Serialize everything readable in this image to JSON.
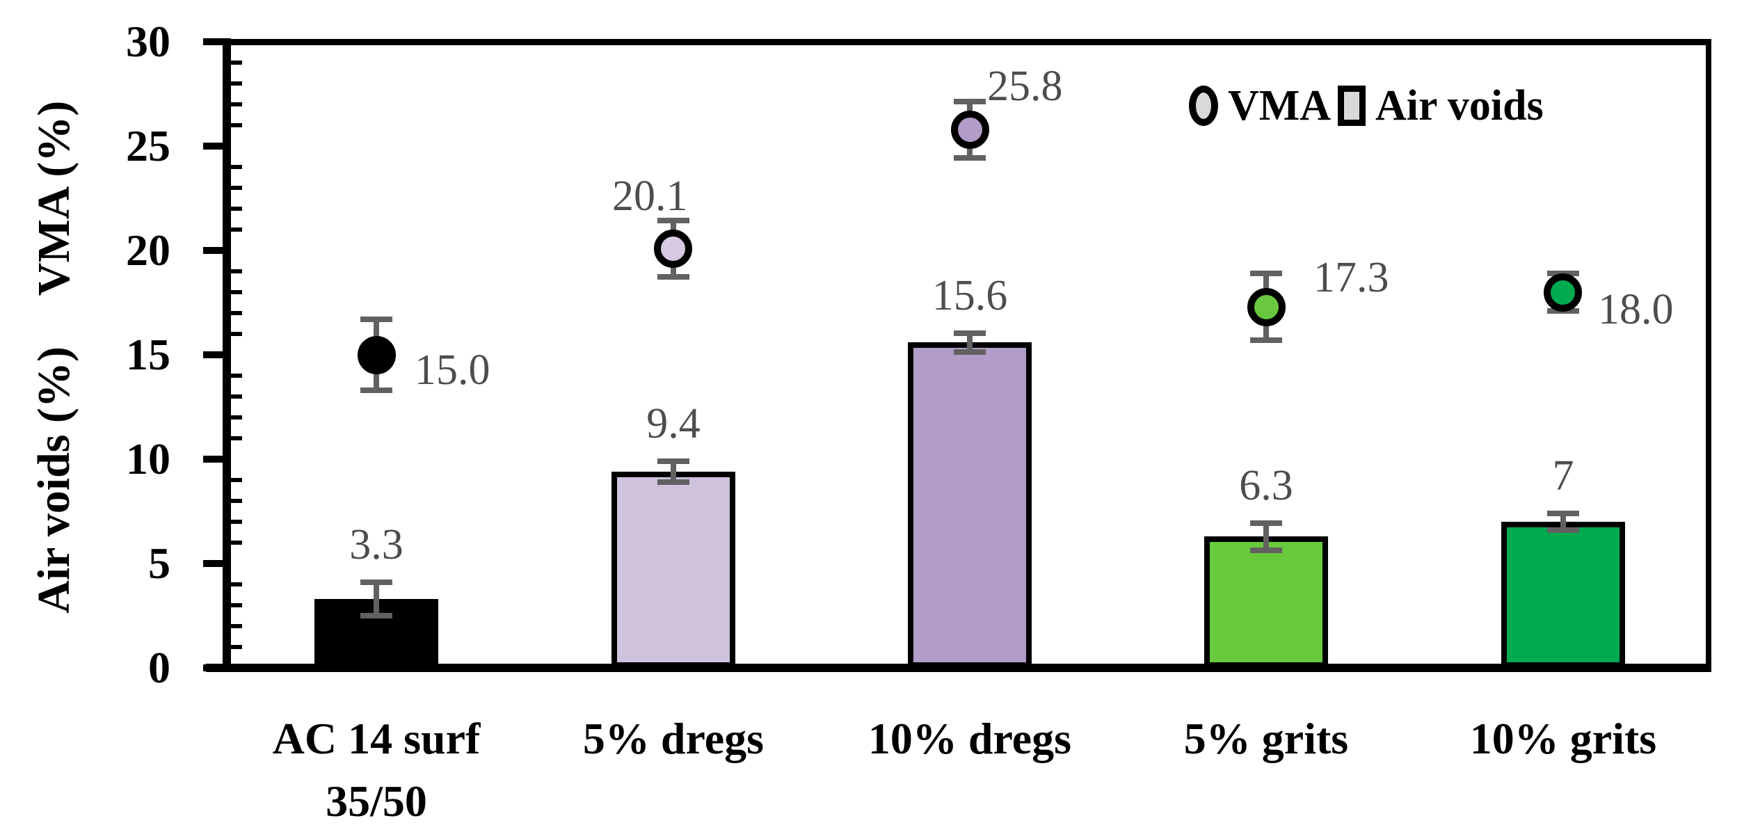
{
  "figure": {
    "y_axis_label_top": "VMA (%)",
    "y_axis_label_bottom": "Air voids (%)",
    "legend": {
      "vma": "VMA",
      "air_voids": "Air voids"
    }
  },
  "chart_data": {
    "type": "bar",
    "subtype": "bar-with-scatter-overlay",
    "title": "",
    "xlabel": "",
    "ylabel_left_top": "VMA (%)",
    "ylabel_left_bottom": "Air voids (%)",
    "ylim": [
      0,
      30
    ],
    "y_major_ticks": [
      0,
      5,
      10,
      15,
      20,
      25,
      30
    ],
    "y_tick_labels": [
      "0",
      "5",
      "10",
      "15",
      "20",
      "25",
      "30"
    ],
    "y_minor_step": 1,
    "grid": false,
    "legend_position": "top-right-inside",
    "legend_marker_fill": "#D9D9D9",
    "value_label_color": "#4D4D4D",
    "error_bar_color": "#616161",
    "categories": [
      {
        "lines": [
          "AC 14 surf",
          "35/50"
        ]
      },
      {
        "lines": [
          "5% dregs"
        ]
      },
      {
        "lines": [
          "10% dregs"
        ]
      },
      {
        "lines": [
          "5% grits"
        ]
      },
      {
        "lines": [
          "10% grits"
        ]
      }
    ],
    "series": [
      {
        "name": "Air voids",
        "type": "bar",
        "values": [
          3.3,
          9.4,
          15.6,
          6.3,
          7
        ],
        "labels": [
          "3.3",
          "9.4",
          "15.6",
          "6.3",
          "7"
        ],
        "errors": [
          0.8,
          0.5,
          0.45,
          0.65,
          0.4
        ],
        "colors": [
          "#000000",
          "#CEC2DD",
          "#B29CC8",
          "#69C93C",
          "#00AB50"
        ]
      },
      {
        "name": "VMA",
        "type": "scatter",
        "values": [
          15.0,
          20.1,
          25.8,
          17.3,
          18.0
        ],
        "labels": [
          "15.0",
          "20.1",
          "25.8",
          "17.3",
          "18.0"
        ],
        "errors": [
          1.7,
          1.35,
          1.35,
          1.6,
          0.9
        ],
        "colors": [
          "#000000",
          "#D6CAE3",
          "#B29CC8",
          "#6AC740",
          "#00AB50"
        ],
        "label_offsets": [
          {
            "dx": 55,
            "dy": 22
          },
          {
            "dx": -88,
            "dy": -75
          },
          {
            "dx": 25,
            "dy": -62
          },
          {
            "dx": 68,
            "dy": -42
          },
          {
            "dx": 50,
            "dy": 25
          }
        ]
      }
    ]
  }
}
